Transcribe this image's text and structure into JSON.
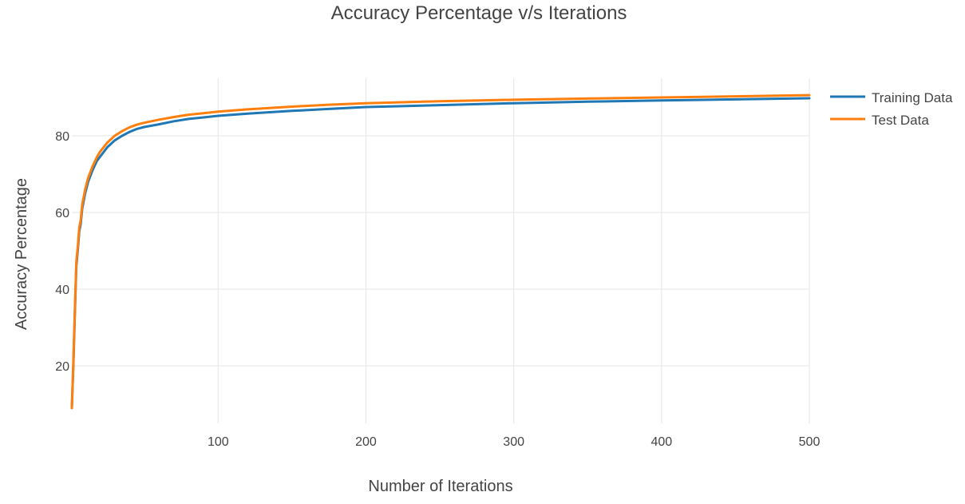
{
  "chart_data": {
    "type": "line",
    "title": "Accuracy Percentage v/s Iterations",
    "xlabel": "Number of Iterations",
    "ylabel": "Accuracy Percentage",
    "xlim": [
      1,
      500
    ],
    "ylim": [
      5,
      95
    ],
    "x_ticks": [
      100,
      200,
      300,
      400,
      500
    ],
    "y_ticks": [
      20,
      40,
      60,
      80
    ],
    "grid": true,
    "legend_position": "top-right",
    "x": [
      1,
      2,
      3,
      4,
      5,
      6,
      7,
      8,
      10,
      12,
      15,
      18,
      20,
      25,
      30,
      35,
      40,
      45,
      50,
      60,
      70,
      80,
      90,
      100,
      120,
      150,
      175,
      200,
      250,
      300,
      350,
      400,
      450,
      500
    ],
    "series": [
      {
        "name": "Training Data",
        "color": "#1f77b4",
        "values": [
          9,
          20,
          33,
          46,
          50,
          55,
          57,
          61,
          65,
          68,
          71,
          73.5,
          74.5,
          77,
          78.8,
          80,
          81,
          81.8,
          82.3,
          83,
          83.8,
          84.4,
          84.8,
          85.2,
          85.8,
          86.5,
          87,
          87.5,
          88,
          88.5,
          88.9,
          89.2,
          89.5,
          89.8
        ]
      },
      {
        "name": "Test Data",
        "color": "#ff7f0e",
        "values": [
          9,
          21,
          34,
          47,
          51,
          56,
          58,
          62,
          66,
          69,
          72,
          74.5,
          75.8,
          78.2,
          80,
          81.2,
          82.2,
          82.9,
          83.4,
          84.2,
          84.9,
          85.5,
          85.9,
          86.3,
          86.9,
          87.6,
          88.1,
          88.5,
          89,
          89.4,
          89.7,
          90,
          90.3,
          90.6
        ]
      }
    ]
  }
}
